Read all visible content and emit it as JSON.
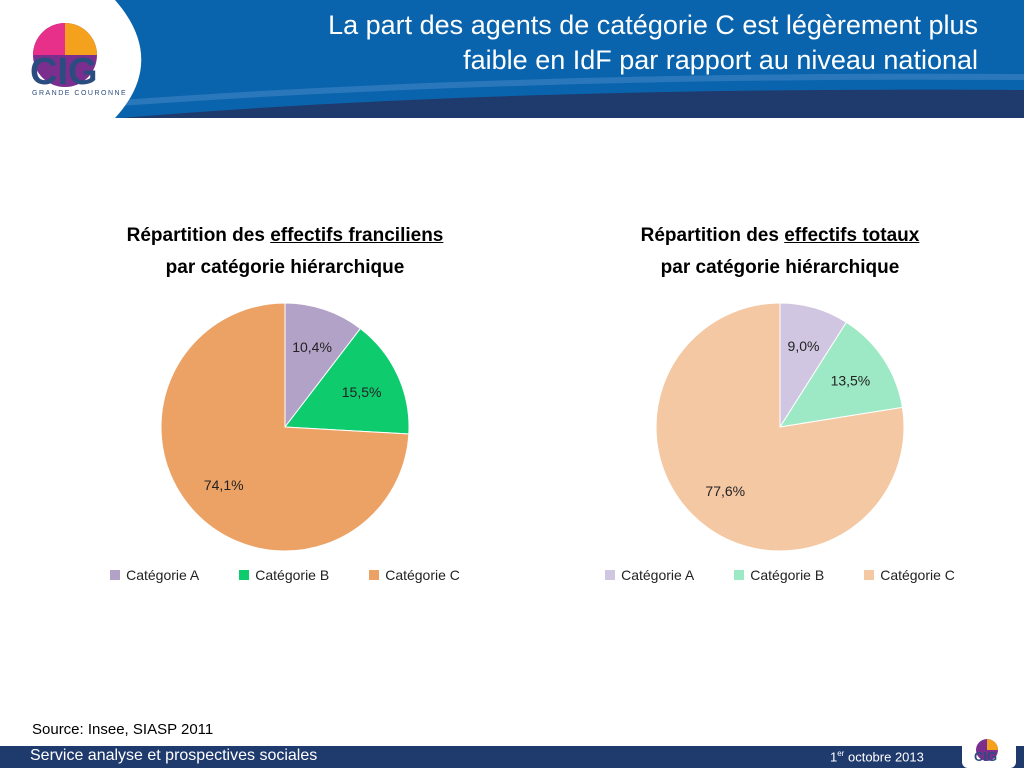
{
  "title": "La part des agents de catégorie C est légèrement plus faible en IdF par rapport au niveau national",
  "logo": {
    "text": "CIG",
    "subtext": "GRANDE COURONNE"
  },
  "source": "Source: Insee, SIASP 2011",
  "footer": {
    "left": "Service analyse et prospectives sociales",
    "date_prefix": "1",
    "date_sup": "er",
    "date_suffix": " octobre 2013"
  },
  "colors": {
    "header": "#0a64ad",
    "header_swoosh": "#1f3a6d",
    "footer": "#1f3a6d"
  },
  "chart_data": [
    {
      "type": "pie",
      "title_part1": "Répartition des ",
      "title_underlined": "effectifs franciliens",
      "title_line2": "par catégorie hiérarchique",
      "categories": [
        "Catégorie A",
        "Catégorie B",
        "Catégorie C"
      ],
      "values": [
        10.4,
        15.5,
        74.1
      ],
      "labels": [
        "10,4%",
        "15,5%",
        "74,1%"
      ],
      "colors": [
        "#b3a2c7",
        "#0ecb6e",
        "#eca265"
      ],
      "legend_position": "bottom"
    },
    {
      "type": "pie",
      "title_part1": "Répartition des ",
      "title_underlined": "effectifs totaux",
      "title_line2": "par catégorie hiérarchique",
      "categories": [
        "Catégorie A",
        "Catégorie B",
        "Catégorie C"
      ],
      "values": [
        9.0,
        13.5,
        77.6
      ],
      "labels": [
        "9,0%",
        "13,5%",
        "77,6%"
      ],
      "colors": [
        "#d0c6e1",
        "#9ee9c5",
        "#f4c8a3"
      ],
      "legend_position": "bottom"
    }
  ]
}
